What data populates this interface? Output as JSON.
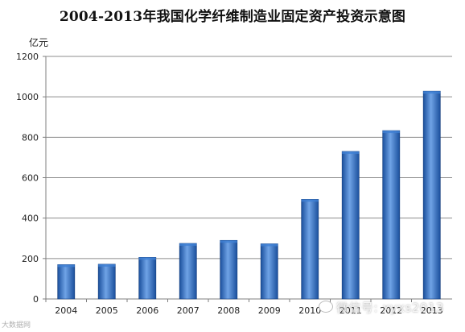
{
  "chart_data": {
    "type": "bar",
    "title": "2004-2013年我国化学纤维制造业固定资产投资示意图",
    "unit_label": "亿元",
    "categories": [
      "2004",
      "2005",
      "2006",
      "2007",
      "2008",
      "2009",
      "2010",
      "2011",
      "2012",
      "2013"
    ],
    "values": [
      170,
      172,
      206,
      275,
      290,
      273,
      493,
      730,
      833,
      1028
    ],
    "ylim": [
      0,
      1200
    ],
    "yticks": [
      "0",
      "200",
      "400",
      "600",
      "800",
      "1000",
      "1200"
    ],
    "grid": true,
    "legend": "none",
    "colors": {
      "bar_dark": "#1a4f9c",
      "bar_mid": "#3f7fd3",
      "bar_light": "#6fa3e6",
      "grid": "#8c8c8c",
      "axis": "#7f7f7f"
    }
  },
  "watermarks": {
    "logo_text": "大数据网",
    "wechat_text": "微信号: xyxs2013"
  }
}
